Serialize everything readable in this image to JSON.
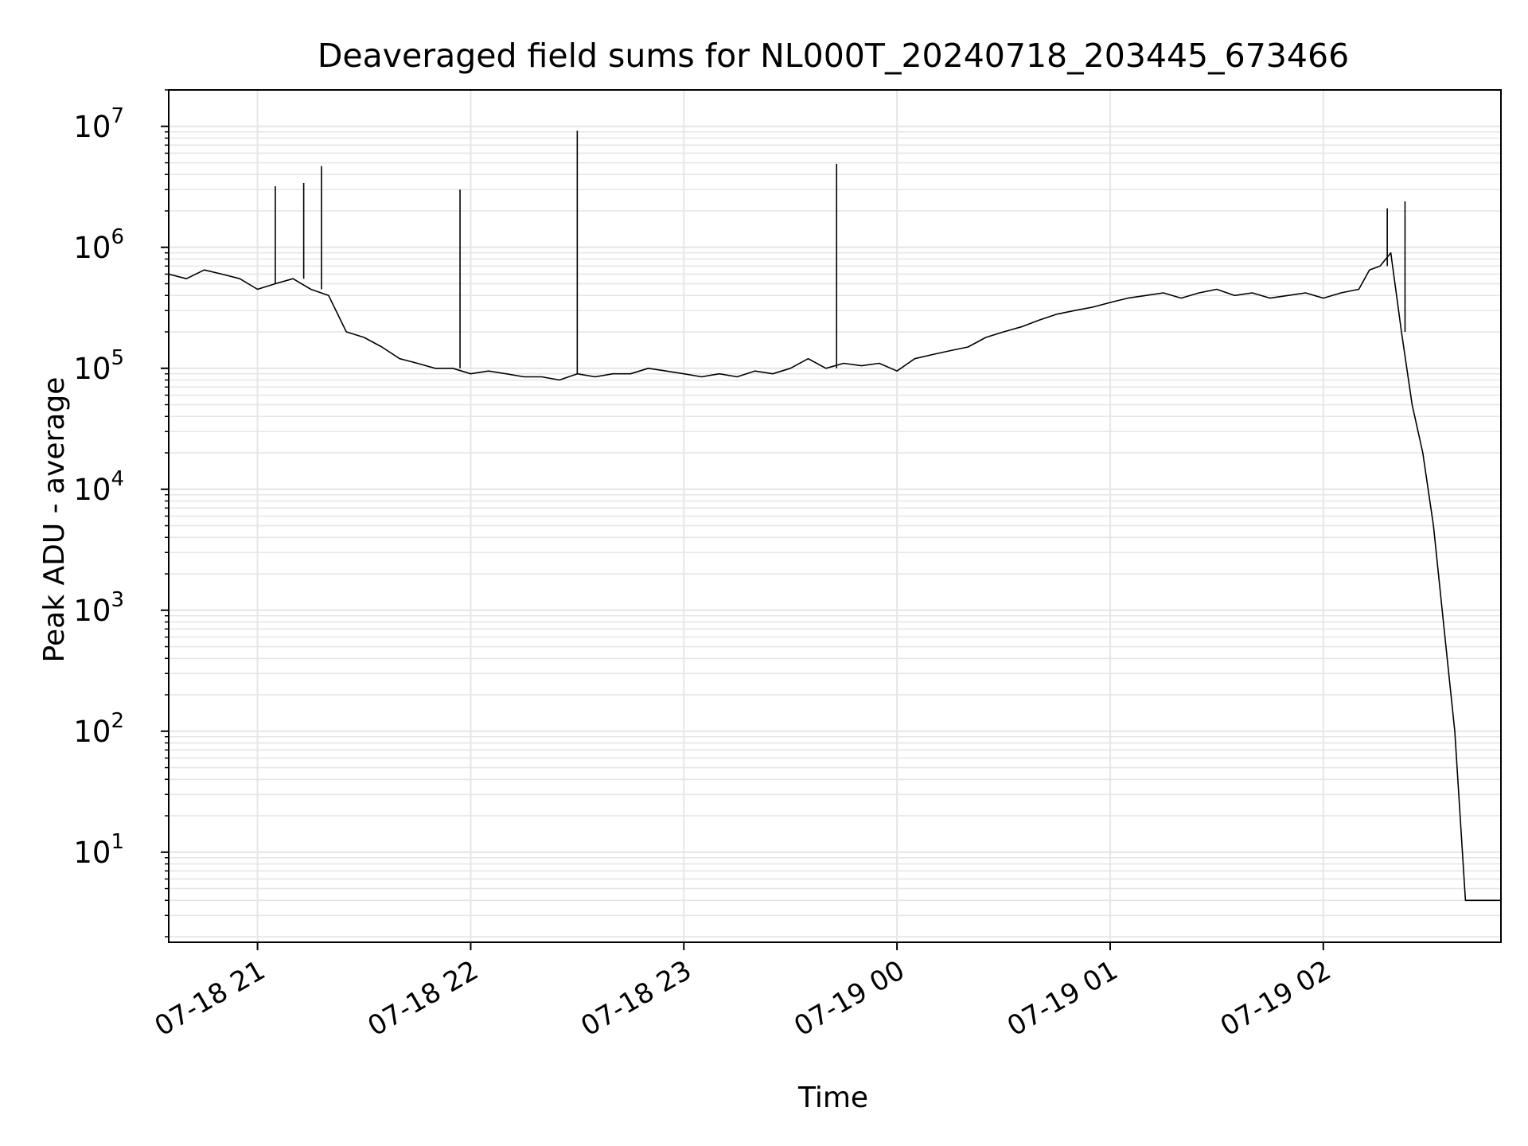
{
  "chart_data": {
    "type": "line",
    "title": "Deaveraged field sums for NL000T_20240718_203445_673466",
    "xlabel": "Time",
    "ylabel": "Peak ADU - average",
    "x_scale": "time",
    "y_scale": "log",
    "xlim": [
      "2024-07-18 20:35",
      "2024-07-19 02:50"
    ],
    "ylim": [
      1.8,
      20000000
    ],
    "x_ticks": [
      {
        "value": "2024-07-18 21:00",
        "label": "07-18 21"
      },
      {
        "value": "2024-07-18 22:00",
        "label": "07-18 22"
      },
      {
        "value": "2024-07-18 23:00",
        "label": "07-18 23"
      },
      {
        "value": "2024-07-19 00:00",
        "label": "07-19 00"
      },
      {
        "value": "2024-07-19 01:00",
        "label": "07-19 01"
      },
      {
        "value": "2024-07-19 02:00",
        "label": "07-19 02"
      }
    ],
    "y_ticks": [
      {
        "value": 10,
        "base": "10",
        "exp": "1"
      },
      {
        "value": 100,
        "base": "10",
        "exp": "2"
      },
      {
        "value": 1000,
        "base": "10",
        "exp": "3"
      },
      {
        "value": 10000,
        "base": "10",
        "exp": "4"
      },
      {
        "value": 100000,
        "base": "10",
        "exp": "5"
      },
      {
        "value": 1000000,
        "base": "10",
        "exp": "6"
      },
      {
        "value": 10000000,
        "base": "10",
        "exp": "7"
      }
    ],
    "grid": true,
    "line_color": "#000000",
    "grid_color": "#e6e6e6",
    "series": [
      {
        "x": [
          "2024-07-18 20:35",
          "2024-07-18 20:40",
          "2024-07-18 20:45",
          "2024-07-18 20:50",
          "2024-07-18 20:55",
          "2024-07-18 21:00",
          "2024-07-18 21:05",
          "2024-07-18 21:10",
          "2024-07-18 21:15",
          "2024-07-18 21:20",
          "2024-07-18 21:25",
          "2024-07-18 21:30",
          "2024-07-18 21:35",
          "2024-07-18 21:40",
          "2024-07-18 21:45",
          "2024-07-18 21:50",
          "2024-07-18 21:55",
          "2024-07-18 22:00",
          "2024-07-18 22:05",
          "2024-07-18 22:10",
          "2024-07-18 22:15",
          "2024-07-18 22:20",
          "2024-07-18 22:25",
          "2024-07-18 22:30",
          "2024-07-18 22:35",
          "2024-07-18 22:40",
          "2024-07-18 22:45",
          "2024-07-18 22:50",
          "2024-07-18 22:55",
          "2024-07-18 23:00",
          "2024-07-18 23:05",
          "2024-07-18 23:10",
          "2024-07-18 23:15",
          "2024-07-18 23:20",
          "2024-07-18 23:25",
          "2024-07-18 23:30",
          "2024-07-18 23:35",
          "2024-07-18 23:40",
          "2024-07-18 23:45",
          "2024-07-18 23:50",
          "2024-07-18 23:55",
          "2024-07-19 00:00",
          "2024-07-19 00:05",
          "2024-07-19 00:10",
          "2024-07-19 00:15",
          "2024-07-19 00:20",
          "2024-07-19 00:25",
          "2024-07-19 00:30",
          "2024-07-19 00:35",
          "2024-07-19 00:40",
          "2024-07-19 00:45",
          "2024-07-19 00:50",
          "2024-07-19 00:55",
          "2024-07-19 01:00",
          "2024-07-19 01:05",
          "2024-07-19 01:10",
          "2024-07-19 01:15",
          "2024-07-19 01:20",
          "2024-07-19 01:25",
          "2024-07-19 01:30",
          "2024-07-19 01:35",
          "2024-07-19 01:40",
          "2024-07-19 01:45",
          "2024-07-19 01:50",
          "2024-07-19 01:55",
          "2024-07-19 02:00",
          "2024-07-19 02:05",
          "2024-07-19 02:10",
          "2024-07-19 02:13",
          "2024-07-19 02:16",
          "2024-07-19 02:19",
          "2024-07-19 02:22",
          "2024-07-19 02:25",
          "2024-07-19 02:28",
          "2024-07-19 02:31",
          "2024-07-19 02:34",
          "2024-07-19 02:37",
          "2024-07-19 02:40",
          "2024-07-19 02:44",
          "2024-07-19 02:47",
          "2024-07-19 02:50"
        ],
        "y": [
          600000,
          550000,
          650000,
          600000,
          550000,
          450000,
          500000,
          550000,
          450000,
          400000,
          200000,
          180000,
          150000,
          120000,
          110000,
          100000,
          100000,
          90000,
          95000,
          90000,
          85000,
          85000,
          80000,
          90000,
          85000,
          90000,
          90000,
          100000,
          95000,
          90000,
          85000,
          90000,
          85000,
          95000,
          90000,
          100000,
          120000,
          100000,
          110000,
          105000,
          110000,
          95000,
          120000,
          130000,
          140000,
          150000,
          180000,
          200000,
          220000,
          250000,
          280000,
          300000,
          320000,
          350000,
          380000,
          400000,
          420000,
          380000,
          420000,
          450000,
          400000,
          420000,
          380000,
          400000,
          420000,
          380000,
          420000,
          450000,
          650000,
          700000,
          900000,
          200000,
          50000,
          20000,
          5000,
          700,
          100,
          4,
          4,
          4,
          4
        ]
      }
    ],
    "spikes": [
      {
        "x": "2024-07-18 21:05",
        "y": 3200000
      },
      {
        "x": "2024-07-18 21:13",
        "y": 3400000
      },
      {
        "x": "2024-07-18 21:18",
        "y": 4700000
      },
      {
        "x": "2024-07-18 21:57",
        "y": 3000000
      },
      {
        "x": "2024-07-18 22:30",
        "y": 9200000
      },
      {
        "x": "2024-07-18 23:43",
        "y": 4900000
      },
      {
        "x": "2024-07-19 02:18",
        "y": 2100000
      },
      {
        "x": "2024-07-19 02:23",
        "y": 2400000
      }
    ]
  }
}
